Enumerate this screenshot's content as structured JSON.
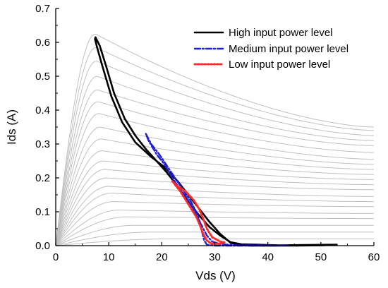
{
  "chart_data": {
    "type": "line",
    "title": "",
    "xlabel": "Vds (V)",
    "ylabel": "Ids (A)",
    "xlim": [
      0,
      60
    ],
    "ylim": [
      0,
      0.7
    ],
    "xticks": [
      0,
      10,
      20,
      30,
      40,
      50,
      60
    ],
    "xtick_labels": [
      "0",
      "10",
      "20",
      "30",
      "40",
      "50",
      "60"
    ],
    "yticks": [
      0.0,
      0.1,
      0.2,
      0.3,
      0.4,
      0.5,
      0.6,
      0.7
    ],
    "ytick_labels": [
      "0.0",
      "0.1",
      "0.2",
      "0.3",
      "0.4",
      "0.5",
      "0.6",
      "0.7"
    ],
    "grid": false,
    "legend_position": "top-right",
    "background_curves": {
      "color": "#c0c0c0",
      "description_units": "Ids (A) family of I-V characteristics",
      "knee_vds": [
        7.5,
        7.6,
        7.7,
        7.8,
        7.9,
        8.0,
        8.2,
        8.4,
        8.6,
        8.8,
        9.0,
        9.3,
        9.6,
        10.0,
        10.5,
        11.0,
        12.0,
        13.5,
        15.0,
        18.0,
        22.0
      ],
      "peak_ids": [
        0.625,
        0.585,
        0.545,
        0.5,
        0.46,
        0.425,
        0.39,
        0.35,
        0.315,
        0.28,
        0.25,
        0.225,
        0.2,
        0.175,
        0.155,
        0.13,
        0.105,
        0.085,
        0.06,
        0.04,
        0.02
      ],
      "ids_at_60": [
        0.35,
        0.34,
        0.325,
        0.31,
        0.295,
        0.275,
        0.255,
        0.24,
        0.225,
        0.21,
        0.195,
        0.18,
        0.165,
        0.145,
        0.13,
        0.115,
        0.095,
        0.08,
        0.06,
        0.04,
        0.02
      ]
    },
    "series": [
      {
        "name": "High input power level",
        "color": "#000000",
        "style": "solid",
        "points": [
          [
            53,
            0.003
          ],
          [
            47,
            0.002
          ],
          [
            42,
            0.001
          ],
          [
            38,
            0.003
          ],
          [
            35,
            0.004
          ],
          [
            33,
            0.01
          ],
          [
            31,
            0.03
          ],
          [
            29,
            0.055
          ],
          [
            27,
            0.09
          ],
          [
            25,
            0.13
          ],
          [
            23,
            0.175
          ],
          [
            21,
            0.215
          ],
          [
            19,
            0.25
          ],
          [
            17,
            0.285
          ],
          [
            15,
            0.325
          ],
          [
            13,
            0.375
          ],
          [
            11,
            0.45
          ],
          [
            9.5,
            0.53
          ],
          [
            8.3,
            0.59
          ],
          [
            7.5,
            0.615
          ],
          [
            7.4,
            0.61
          ],
          [
            7.8,
            0.585
          ],
          [
            8.8,
            0.53
          ],
          [
            10.5,
            0.44
          ],
          [
            12.5,
            0.365
          ],
          [
            15,
            0.305
          ],
          [
            18,
            0.262
          ],
          [
            20.5,
            0.232
          ],
          [
            23,
            0.19
          ],
          [
            25,
            0.15
          ],
          [
            27,
            0.11
          ],
          [
            29,
            0.07
          ],
          [
            31,
            0.035
          ],
          [
            33,
            0.008
          ],
          [
            35,
            0.001
          ],
          [
            37,
            0.0
          ],
          [
            41,
            0.0
          ],
          [
            45,
            0.0
          ],
          [
            50,
            0.001
          ],
          [
            53,
            0.003
          ]
        ]
      },
      {
        "name": "Medium input power level",
        "color": "#1f1fd6",
        "style": "dashdot",
        "points": [
          [
            17,
            0.33
          ],
          [
            18,
            0.3
          ],
          [
            19.5,
            0.27
          ],
          [
            21,
            0.235
          ],
          [
            22.5,
            0.2
          ],
          [
            24,
            0.165
          ],
          [
            25.5,
            0.13
          ],
          [
            26.5,
            0.1
          ],
          [
            27.2,
            0.07
          ],
          [
            27.6,
            0.04
          ],
          [
            28,
            0.015
          ],
          [
            28.5,
            0.003
          ],
          [
            30,
            0.0
          ],
          [
            34,
            0.0
          ],
          [
            38,
            0.0
          ],
          [
            42,
            0.0
          ],
          [
            44,
            0.001
          ],
          [
            42,
            0.0
          ],
          [
            38,
            0.001
          ],
          [
            34,
            0.001
          ],
          [
            31,
            0.005
          ],
          [
            29.5,
            0.012
          ],
          [
            28.5,
            0.03
          ],
          [
            27.5,
            0.06
          ],
          [
            26.5,
            0.09
          ],
          [
            25.5,
            0.12
          ],
          [
            24.5,
            0.145
          ],
          [
            23.5,
            0.165
          ],
          [
            22,
            0.2
          ],
          [
            20.5,
            0.24
          ],
          [
            19,
            0.27
          ],
          [
            17.5,
            0.31
          ],
          [
            17,
            0.33
          ]
        ]
      },
      {
        "name": "Low input power level",
        "color": "#ff2a2a",
        "style": "dotted",
        "points": [
          [
            22,
            0.19
          ],
          [
            23,
            0.175
          ],
          [
            24.5,
            0.16
          ],
          [
            26,
            0.135
          ],
          [
            27,
            0.11
          ],
          [
            27.8,
            0.08
          ],
          [
            28.5,
            0.05
          ],
          [
            29.5,
            0.025
          ],
          [
            31,
            0.012
          ],
          [
            31.8,
            0.01
          ],
          [
            31,
            0.006
          ],
          [
            29.5,
            0.005
          ],
          [
            28.5,
            0.015
          ],
          [
            27.8,
            0.035
          ],
          [
            27.2,
            0.06
          ],
          [
            26.5,
            0.085
          ],
          [
            25.5,
            0.11
          ],
          [
            24.5,
            0.135
          ],
          [
            23.5,
            0.16
          ],
          [
            22.5,
            0.18
          ],
          [
            22,
            0.19
          ]
        ]
      }
    ]
  }
}
